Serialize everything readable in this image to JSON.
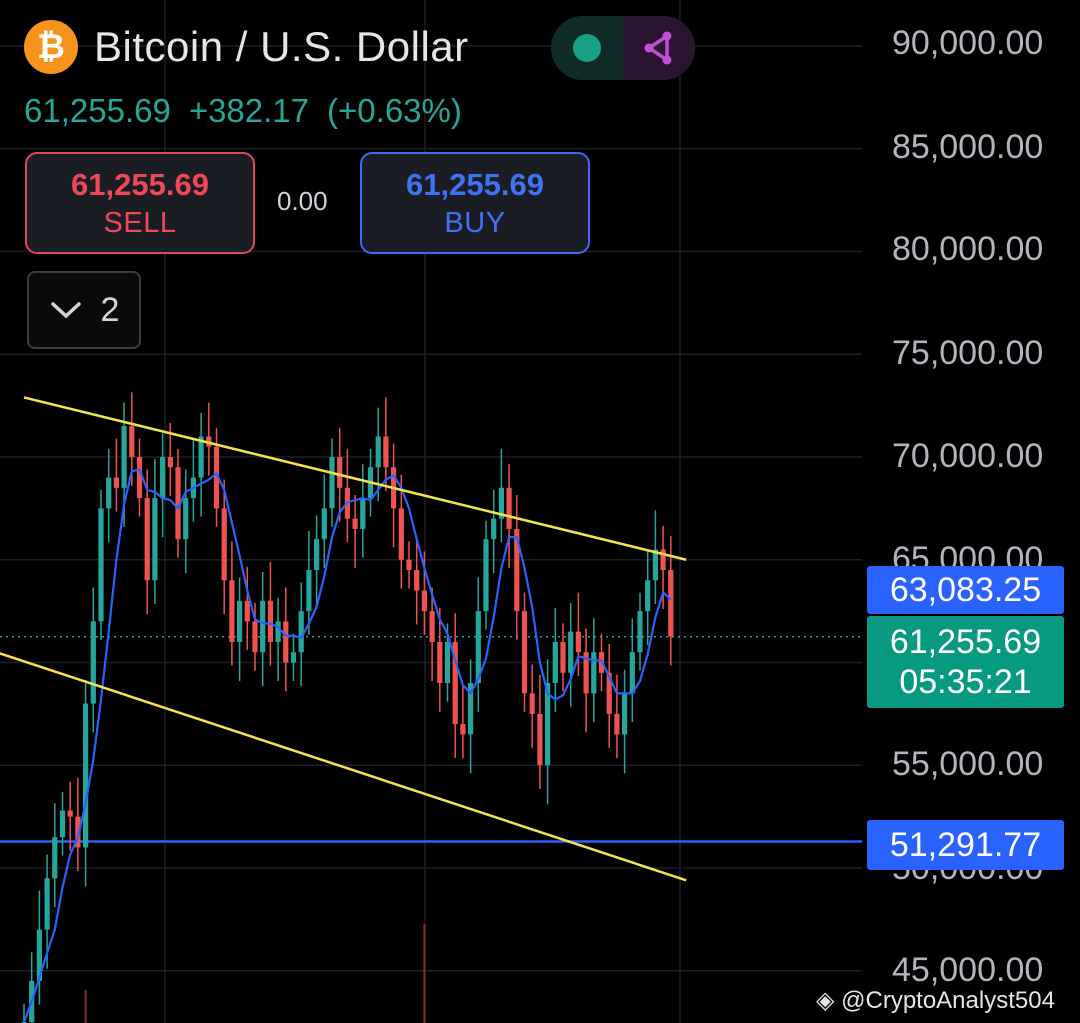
{
  "header": {
    "coin_icon_glyph": "₿",
    "title": "Bitcoin / U.S. Dollar",
    "accent_colors": {
      "coin": "#f7931a",
      "up": "#26a69a",
      "down": "#ef5350",
      "ma": "#2962ff",
      "channel": "#f5e34e"
    }
  },
  "quote": {
    "last": "61,255.69",
    "change": "+382.17",
    "change_pct": "(+0.63%)"
  },
  "trade": {
    "sell_price": "61,255.69",
    "sell_label": "SELL",
    "spread": "0.00",
    "buy_price": "61,255.69",
    "buy_label": "BUY"
  },
  "collapse": {
    "count": "2"
  },
  "price_axis": {
    "labels": [
      "90,000.00",
      "85,000.00",
      "80,000.00",
      "75,000.00",
      "70,000.00",
      "65,000.00",
      "55,000.00",
      "50,000.00",
      "45,000.00"
    ]
  },
  "tags": {
    "ma_value": "63,083.25",
    "last_price": "61,255.69",
    "countdown": "05:35:21",
    "level_value": "51,291.77"
  },
  "watermark": "@CryptoAnalyst504",
  "chart_data": {
    "type": "candlestick",
    "title": "Bitcoin / U.S. Dollar",
    "ylim": [
      44000,
      92000
    ],
    "y_ticks": [
      45000,
      50000,
      55000,
      60000,
      65000,
      70000,
      75000,
      80000,
      85000,
      90000
    ],
    "grid": true,
    "last_price": 61255.69,
    "horizontal_level": 51291.77,
    "moving_average_last": 63083.25,
    "channel_upper": {
      "start": [
        0,
        72900
      ],
      "end": [
        86,
        65000
      ]
    },
    "channel_lower": {
      "start": [
        -6,
        60800
      ],
      "end": [
        86,
        49400
      ]
    },
    "closes": [
      42500,
      44500,
      47000,
      49500,
      51500,
      52800,
      52500,
      51000,
      58000,
      62000,
      67500,
      69000,
      68500,
      71500,
      70000,
      68000,
      64000,
      68000,
      70000,
      69500,
      66000,
      68000,
      69000,
      71000,
      70500,
      67500,
      64000,
      61000,
      63000,
      62000,
      60500,
      63000,
      61000,
      62000,
      60000,
      60500,
      62500,
      64500,
      66000,
      67500,
      70000,
      68500,
      67000,
      66500,
      68000,
      69500,
      71000,
      69500,
      67500,
      65000,
      64500,
      63500,
      62500,
      61000,
      59000,
      61000,
      57000,
      56500,
      59000,
      62500,
      66000,
      67000,
      68500,
      66500,
      62500,
      58500,
      57500,
      55000,
      59000,
      61000,
      59500,
      61500,
      60500,
      58500,
      60500,
      59500,
      57500,
      56500,
      58500,
      60500,
      62500,
      64000,
      65500,
      64500,
      61255
    ],
    "volume_spikes": [
      {
        "index": 52,
        "relative": 0.9
      },
      {
        "index": 8,
        "relative": 0.3
      }
    ]
  }
}
